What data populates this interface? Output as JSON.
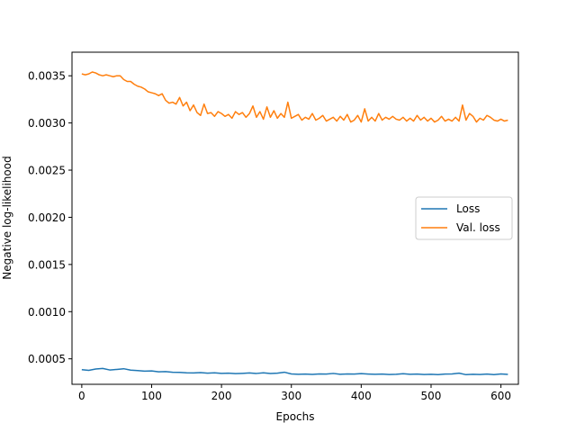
{
  "chart_data": {
    "type": "line",
    "title": "",
    "xlabel": "Epochs",
    "ylabel": "Negative log-likelihood",
    "xlim": [
      -14,
      625
    ],
    "ylim": [
      0.00023,
      0.00375
    ],
    "xticks": [
      0,
      100,
      200,
      300,
      400,
      500,
      600
    ],
    "yticks": [
      0.0005,
      0.001,
      0.0015,
      0.002,
      0.0025,
      0.003,
      0.0035
    ],
    "ytick_labels": [
      "0.0005",
      "0.0010",
      "0.0015",
      "0.0020",
      "0.0025",
      "0.0030",
      "0.0035"
    ],
    "grid": false,
    "legend_position": "center-right",
    "series": [
      {
        "name": "Loss",
        "color": "#1f77b4",
        "x": [
          0,
          10,
          20,
          30,
          40,
          50,
          60,
          70,
          80,
          90,
          100,
          110,
          120,
          130,
          140,
          150,
          160,
          170,
          180,
          190,
          200,
          210,
          220,
          230,
          240,
          250,
          260,
          270,
          280,
          290,
          300,
          310,
          320,
          330,
          340,
          350,
          360,
          370,
          380,
          390,
          400,
          410,
          420,
          430,
          440,
          450,
          460,
          470,
          480,
          490,
          500,
          510,
          520,
          530,
          540,
          550,
          560,
          570,
          580,
          590,
          600,
          610
        ],
        "values": [
          0.000385,
          0.000378,
          0.000392,
          0.000398,
          0.000382,
          0.000388,
          0.000395,
          0.00038,
          0.000376,
          0.00037,
          0.000372,
          0.000362,
          0.000365,
          0.000358,
          0.000356,
          0.000352,
          0.00035,
          0.000354,
          0.000348,
          0.000352,
          0.000346,
          0.000348,
          0.000343,
          0.000346,
          0.00035,
          0.000345,
          0.000352,
          0.000344,
          0.000348,
          0.000358,
          0.00034,
          0.000336,
          0.000338,
          0.000335,
          0.00034,
          0.000338,
          0.000345,
          0.000336,
          0.00034,
          0.000338,
          0.000343,
          0.000339,
          0.000336,
          0.000338,
          0.000334,
          0.000336,
          0.000342,
          0.000336,
          0.000338,
          0.000334,
          0.000336,
          0.000332,
          0.000338,
          0.00034,
          0.000348,
          0.000332,
          0.000336,
          0.000334,
          0.000338,
          0.000333,
          0.00034,
          0.000335
        ]
      },
      {
        "name": "Val. loss",
        "color": "#ff7f0e",
        "x": [
          0,
          5,
          10,
          15,
          20,
          25,
          30,
          35,
          40,
          45,
          50,
          55,
          60,
          65,
          70,
          75,
          80,
          85,
          90,
          95,
          100,
          105,
          110,
          115,
          120,
          125,
          130,
          135,
          140,
          145,
          150,
          155,
          160,
          165,
          170,
          175,
          180,
          185,
          190,
          195,
          200,
          205,
          210,
          215,
          220,
          225,
          230,
          235,
          240,
          245,
          250,
          255,
          260,
          265,
          270,
          275,
          280,
          285,
          290,
          295,
          300,
          305,
          310,
          315,
          320,
          325,
          330,
          335,
          340,
          345,
          350,
          355,
          360,
          365,
          370,
          375,
          380,
          385,
          390,
          395,
          400,
          405,
          410,
          415,
          420,
          425,
          430,
          435,
          440,
          445,
          450,
          455,
          460,
          465,
          470,
          475,
          480,
          485,
          490,
          495,
          500,
          505,
          510,
          515,
          520,
          525,
          530,
          535,
          540,
          545,
          550,
          555,
          560,
          565,
          570,
          575,
          580,
          585,
          590,
          595,
          600,
          605,
          610
        ],
        "values": [
          0.00352,
          0.00351,
          0.00352,
          0.00354,
          0.00353,
          0.00351,
          0.0035,
          0.00351,
          0.0035,
          0.00349,
          0.0035,
          0.0035,
          0.00346,
          0.00344,
          0.00344,
          0.00341,
          0.00339,
          0.00338,
          0.00336,
          0.00333,
          0.00332,
          0.00331,
          0.00329,
          0.00331,
          0.00324,
          0.00321,
          0.00322,
          0.0032,
          0.00327,
          0.00318,
          0.00322,
          0.00313,
          0.00319,
          0.00311,
          0.00308,
          0.0032,
          0.0031,
          0.00311,
          0.00307,
          0.00312,
          0.0031,
          0.00307,
          0.00309,
          0.00305,
          0.00312,
          0.00309,
          0.00311,
          0.00306,
          0.0031,
          0.00318,
          0.00306,
          0.00312,
          0.00304,
          0.00317,
          0.00306,
          0.00313,
          0.00305,
          0.0031,
          0.00306,
          0.00322,
          0.00305,
          0.00307,
          0.00309,
          0.00303,
          0.00306,
          0.00304,
          0.0031,
          0.00303,
          0.00305,
          0.00308,
          0.00302,
          0.00304,
          0.00306,
          0.00302,
          0.00307,
          0.00303,
          0.00309,
          0.00301,
          0.00303,
          0.00308,
          0.00301,
          0.00315,
          0.00302,
          0.00306,
          0.00302,
          0.0031,
          0.00303,
          0.00306,
          0.00304,
          0.00307,
          0.00304,
          0.00303,
          0.00306,
          0.00302,
          0.00305,
          0.00302,
          0.00308,
          0.00303,
          0.00306,
          0.00302,
          0.00305,
          0.00301,
          0.00303,
          0.00307,
          0.00302,
          0.00304,
          0.00302,
          0.00306,
          0.00302,
          0.00319,
          0.00303,
          0.0031,
          0.00307,
          0.00301,
          0.00305,
          0.00303,
          0.00308,
          0.00306,
          0.00303,
          0.00302,
          0.00304,
          0.00302,
          0.00303
        ]
      }
    ]
  }
}
